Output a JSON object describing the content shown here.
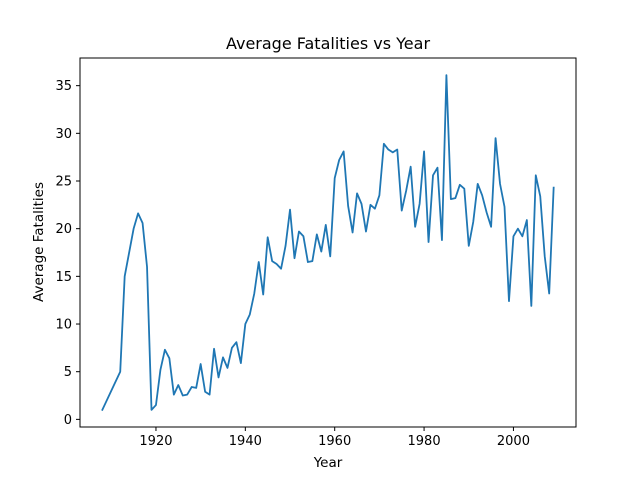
{
  "chart_data": {
    "type": "line",
    "title": "Average Fatalities vs Year",
    "xlabel": "Year",
    "ylabel": "Average Fatalities",
    "xlim": [
      1903,
      2014
    ],
    "ylim": [
      -0.8,
      37.9
    ],
    "xticks": [
      1920,
      1940,
      1960,
      1980,
      2000
    ],
    "yticks": [
      0,
      5,
      10,
      15,
      20,
      25,
      30,
      35
    ],
    "grid": false,
    "line_color": "#1f77b4",
    "series": [
      {
        "x": [
          1908,
          1912,
          1913,
          1915,
          1916,
          1917,
          1918,
          1919,
          1920,
          1921,
          1922,
          1923,
          1924,
          1925,
          1926,
          1927,
          1928,
          1929,
          1930,
          1931,
          1932,
          1933,
          1934,
          1935,
          1936,
          1937,
          1938,
          1939,
          1940,
          1941,
          1942,
          1943,
          1944,
          1945,
          1946,
          1947,
          1948,
          1949,
          1950,
          1951,
          1952,
          1953,
          1954,
          1955,
          1956,
          1957,
          1958,
          1959,
          1960,
          1961,
          1962,
          1963,
          1964,
          1965,
          1966,
          1967,
          1968,
          1969,
          1970,
          1971,
          1972,
          1973,
          1974,
          1975,
          1976,
          1977,
          1978,
          1979,
          1980,
          1981,
          1982,
          1983,
          1984,
          1985,
          1986,
          1987,
          1988,
          1989,
          1990,
          1991,
          1992,
          1993,
          1994,
          1995,
          1996,
          1997,
          1998,
          1999,
          2000,
          2001,
          2002,
          2003,
          2004,
          2005,
          2006,
          2007,
          2008,
          2009
        ],
        "y": [
          1.0,
          5.0,
          15.0,
          20.0,
          21.6,
          20.6,
          16.0,
          1.0,
          1.5,
          5.2,
          7.3,
          6.4,
          2.6,
          3.6,
          2.5,
          2.6,
          3.4,
          3.3,
          5.8,
          2.9,
          2.6,
          7.4,
          4.4,
          6.5,
          5.4,
          7.5,
          8.1,
          5.9,
          10.0,
          11.0,
          13.2,
          16.5,
          13.1,
          19.1,
          16.6,
          16.3,
          15.8,
          18.2,
          22.0,
          16.9,
          19.7,
          19.2,
          16.5,
          16.6,
          19.4,
          17.6,
          20.4,
          17.1,
          25.3,
          27.2,
          28.1,
          22.4,
          19.6,
          23.7,
          22.6,
          19.7,
          22.5,
          22.1,
          23.5,
          28.9,
          28.3,
          28.0,
          28.3,
          21.9,
          24.0,
          26.5,
          20.2,
          22.6,
          28.1,
          18.6,
          25.6,
          26.4,
          18.8,
          36.1,
          23.1,
          23.2,
          24.6,
          24.2,
          18.2,
          20.7,
          24.7,
          23.5,
          21.7,
          20.2,
          29.5,
          24.7,
          22.3,
          12.4,
          19.2,
          20.0,
          19.2,
          20.9,
          11.9,
          25.6,
          23.4,
          17.1,
          13.2,
          24.3
        ]
      }
    ]
  }
}
